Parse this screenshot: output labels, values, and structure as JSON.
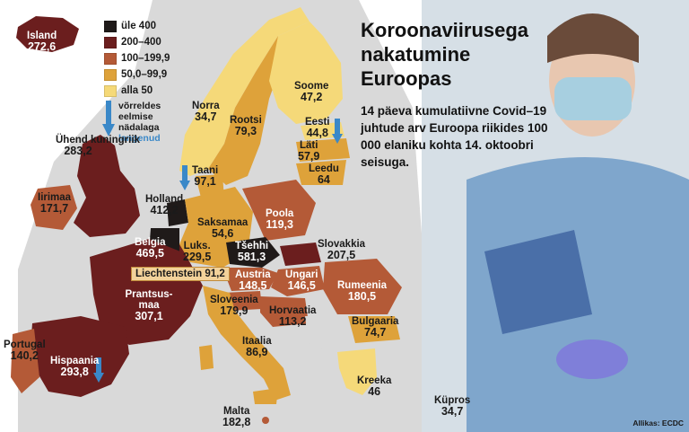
{
  "title": "Koroonaviirusega nakatumine Euroopas",
  "subtitle": "14 päeva kumulatiivne Covid–19 juhtude arv Euroopa riikides 100 000 elaniku kohta 14. oktoobri seisuga.",
  "source": "Allikas: ECDC",
  "legend": {
    "items": [
      {
        "label": "üle 400",
        "color": "#1f1a19"
      },
      {
        "label": "200–400",
        "color": "#6b1e1e"
      },
      {
        "label": "100–199,9",
        "color": "#b45a37"
      },
      {
        "label": "50,0–99,9",
        "color": "#dea23a"
      },
      {
        "label": "alla 50",
        "color": "#f5d978"
      }
    ],
    "trend_note": "võrreldes eelmise nädalaga",
    "trend_fallen": "langenud"
  },
  "countries": {
    "island": {
      "name": "Island",
      "value": "272,6"
    },
    "uk": {
      "name": "Ühend kuningriik",
      "value": "283,2"
    },
    "ireland": {
      "name": "Iirimaa",
      "value": "171,7"
    },
    "norway": {
      "name": "Norra",
      "value": "34,7"
    },
    "sweden": {
      "name": "Rootsi",
      "value": "79,3"
    },
    "finland": {
      "name": "Soome",
      "value": "47,2"
    },
    "estonia": {
      "name": "Eesti",
      "value": "44,8"
    },
    "latvia": {
      "name": "Läti",
      "value": "57,9"
    },
    "lithuania": {
      "name": "Leedu",
      "value": "64"
    },
    "denmark": {
      "name": "Taani",
      "value": "97,1"
    },
    "netherlands": {
      "name": "Holland",
      "value": "412,2"
    },
    "belgium": {
      "name": "Belgia",
      "value": "469,5"
    },
    "luxembourg": {
      "name": "Luks.",
      "value": "229,5"
    },
    "germany": {
      "name": "Saksamaa",
      "value": "54,6"
    },
    "poland": {
      "name": "Poola",
      "value": "119,3"
    },
    "czechia": {
      "name": "Tšehhi",
      "value": "581,3"
    },
    "slovakia": {
      "name": "Slovakkia",
      "value": "207,5"
    },
    "liechtenstein": {
      "name": "Liechtenstein",
      "value": "91,2"
    },
    "austria": {
      "name": "Austria",
      "value": "148,5"
    },
    "hungary": {
      "name": "Ungari",
      "value": "146,5"
    },
    "romania": {
      "name": "Rumeenia",
      "value": "180,5"
    },
    "france": {
      "name": "Prantsus-maa",
      "value": "307,1"
    },
    "slovenia": {
      "name": "Sloveenia",
      "value": "179,9"
    },
    "croatia": {
      "name": "Horvaatia",
      "value": "113,2"
    },
    "bulgaria": {
      "name": "Bulgaaria",
      "value": "74,7"
    },
    "portugal": {
      "name": "Portugal",
      "value": "140,2"
    },
    "spain": {
      "name": "Hispaania",
      "value": "293,8"
    },
    "italy": {
      "name": "Itaalia",
      "value": "86,9"
    },
    "greece": {
      "name": "Kreeka",
      "value": "46"
    },
    "cyprus": {
      "name": "Küpros",
      "value": "34,7"
    },
    "malta": {
      "name": "Malta",
      "value": "182,8"
    }
  }
}
